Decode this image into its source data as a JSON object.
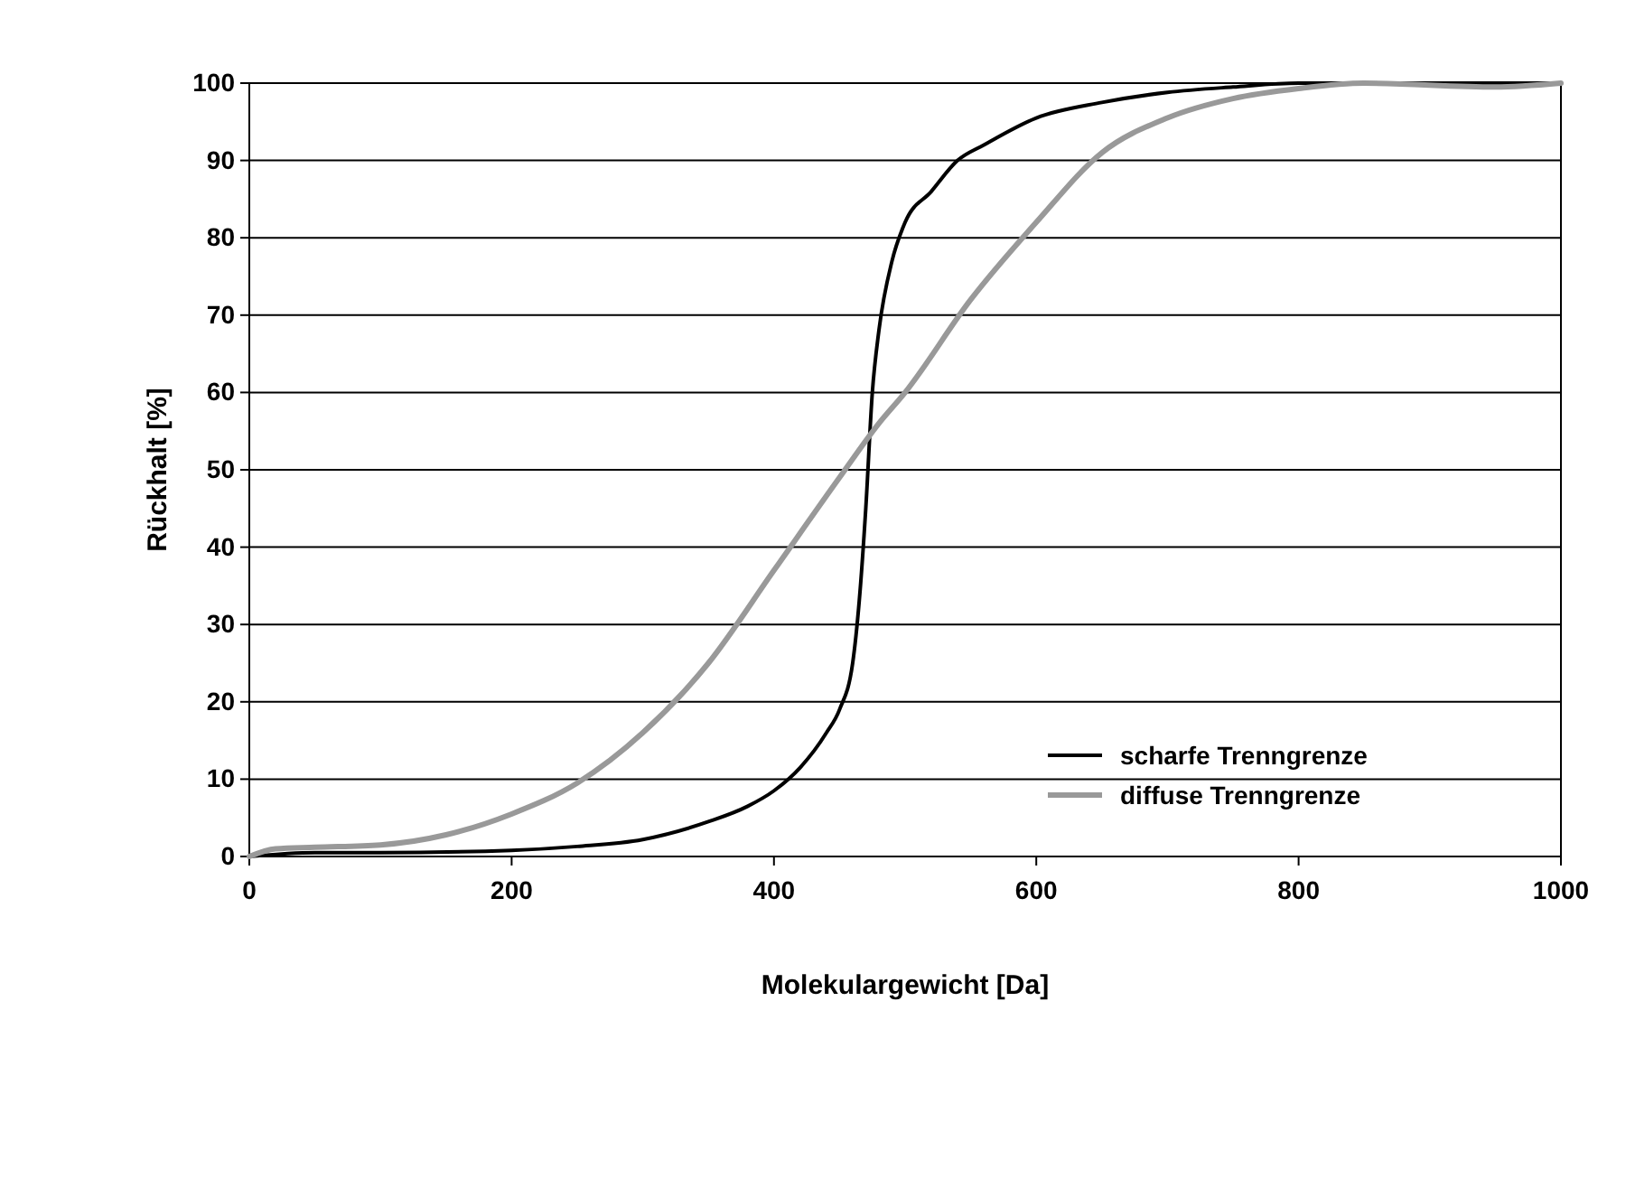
{
  "chart_data": {
    "type": "line",
    "xlabel": "Molekulargewicht [Da]",
    "ylabel": "Rückhalt [%]",
    "xlim": [
      0,
      1000
    ],
    "xticks": [
      0,
      200,
      400,
      600,
      800,
      1000
    ],
    "ylim": [
      0,
      100
    ],
    "yticks": [
      0,
      10,
      20,
      30,
      40,
      50,
      60,
      70,
      80,
      90,
      100
    ],
    "grid": "y",
    "legend": "bottom right",
    "marker": "none",
    "line_style": "solid",
    "series": [
      {
        "name": "scharfe Trenngrenze",
        "color": "#000000",
        "x": [
          0,
          50,
          100,
          200,
          250,
          300,
          350,
          380,
          400,
          420,
          440,
          450,
          460,
          465,
          470,
          475,
          480,
          490,
          500,
          520,
          540,
          560,
          600,
          650,
          700,
          750,
          800,
          1000
        ],
        "values": [
          0,
          0.5,
          0.5,
          0.8,
          1.3,
          2.2,
          4.5,
          6.5,
          8.5,
          11.5,
          16,
          19,
          25,
          33,
          45,
          60,
          68,
          77,
          82,
          86,
          90,
          92,
          95.5,
          97.5,
          98.8,
          99.5,
          100,
          100
        ]
      },
      {
        "name": "diffuse Trenngrenze",
        "color": "#999999",
        "x": [
          0,
          20,
          50,
          100,
          150,
          200,
          250,
          300,
          350,
          400,
          450,
          480,
          500,
          550,
          600,
          650,
          700,
          750,
          800,
          850,
          950,
          1000
        ],
        "values": [
          0,
          1,
          1.2,
          1.5,
          2.8,
          5.5,
          9.5,
          16,
          25,
          37,
          49,
          56,
          60,
          72,
          82,
          91,
          95.5,
          98,
          99.3,
          100,
          99.5,
          100
        ]
      }
    ]
  }
}
